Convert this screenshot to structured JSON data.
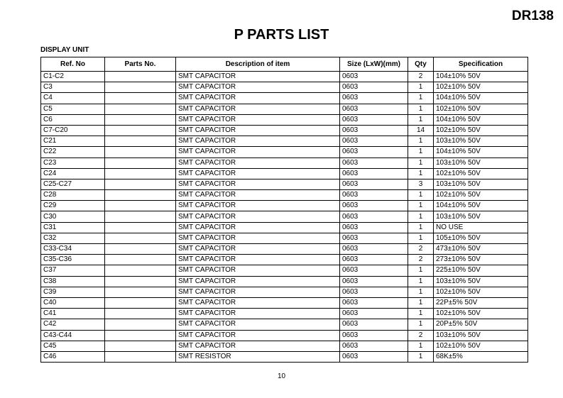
{
  "header": {
    "model": "DR138",
    "title": "P PARTS LIST",
    "section": "DISPLAY UNIT"
  },
  "table": {
    "columns": [
      "Ref. No",
      "Parts No.",
      "Description of item",
      "Size (LxW)(mm)",
      "Qty",
      "Specification"
    ],
    "rows": [
      [
        "C1-C2",
        "",
        "SMT CAPACITOR",
        "0603",
        "2",
        "104±10% 50V"
      ],
      [
        "C3",
        "",
        "SMT CAPACITOR",
        "0603",
        "1",
        "102±10% 50V"
      ],
      [
        "C4",
        "",
        "SMT CAPACITOR",
        "0603",
        "1",
        "104±10% 50V"
      ],
      [
        "C5",
        "",
        "SMT CAPACITOR",
        "0603",
        "1",
        "102±10% 50V"
      ],
      [
        "C6",
        "",
        "SMT CAPACITOR",
        "0603",
        "1",
        "104±10% 50V"
      ],
      [
        "C7-C20",
        "",
        "SMT CAPACITOR",
        "0603",
        "14",
        "102±10% 50V"
      ],
      [
        "C21",
        "",
        "SMT CAPACITOR",
        "0603",
        "1",
        "103±10% 50V"
      ],
      [
        "C22",
        "",
        "SMT CAPACITOR",
        "0603",
        "1",
        "104±10% 50V"
      ],
      [
        "C23",
        "",
        "SMT CAPACITOR",
        "0603",
        "1",
        "103±10% 50V"
      ],
      [
        "C24",
        "",
        "SMT CAPACITOR",
        "0603",
        "1",
        "102±10% 50V"
      ],
      [
        "C25-C27",
        "",
        "SMT CAPACITOR",
        "0603",
        "3",
        "103±10% 50V"
      ],
      [
        "C28",
        "",
        "SMT CAPACITOR",
        "0603",
        "1",
        "102±10% 50V"
      ],
      [
        "C29",
        "",
        "SMT CAPACITOR",
        "0603",
        "1",
        "104±10% 50V"
      ],
      [
        "C30",
        "",
        "SMT CAPACITOR",
        "0603",
        "1",
        "103±10% 50V"
      ],
      [
        "C31",
        "",
        "SMT CAPACITOR",
        "0603",
        "1",
        "NO USE"
      ],
      [
        "C32",
        "",
        "SMT CAPACITOR",
        "0603",
        "1",
        "105±10% 50V"
      ],
      [
        "C33-C34",
        "",
        "SMT CAPACITOR",
        "0603",
        "2",
        "473±10% 50V"
      ],
      [
        "C35-C36",
        "",
        "SMT CAPACITOR",
        "0603",
        "2",
        "273±10% 50V"
      ],
      [
        "C37",
        "",
        "SMT CAPACITOR",
        "0603",
        "1",
        "225±10% 50V"
      ],
      [
        "C38",
        "",
        "SMT CAPACITOR",
        "0603",
        "1",
        "103±10% 50V"
      ],
      [
        "C39",
        "",
        "SMT CAPACITOR",
        "0603",
        "1",
        "102±10% 50V"
      ],
      [
        "C40",
        "",
        "SMT CAPACITOR",
        "0603",
        "1",
        "22P±5% 50V"
      ],
      [
        "C41",
        "",
        "SMT CAPACITOR",
        "0603",
        "1",
        "102±10% 50V"
      ],
      [
        "C42",
        "",
        "SMT CAPACITOR",
        "0603",
        "1",
        "20P±5% 50V"
      ],
      [
        "C43-C44",
        "",
        "SMT CAPACITOR",
        "0603",
        "2",
        "103±10% 50V"
      ],
      [
        "C45",
        "",
        "SMT CAPACITOR",
        "0603",
        "1",
        "102±10% 50V"
      ],
      [
        "C46",
        "",
        "SMT RESISTOR",
        "0603",
        "1",
        "68K±5%"
      ]
    ]
  },
  "footer": {
    "page_number": "10"
  }
}
